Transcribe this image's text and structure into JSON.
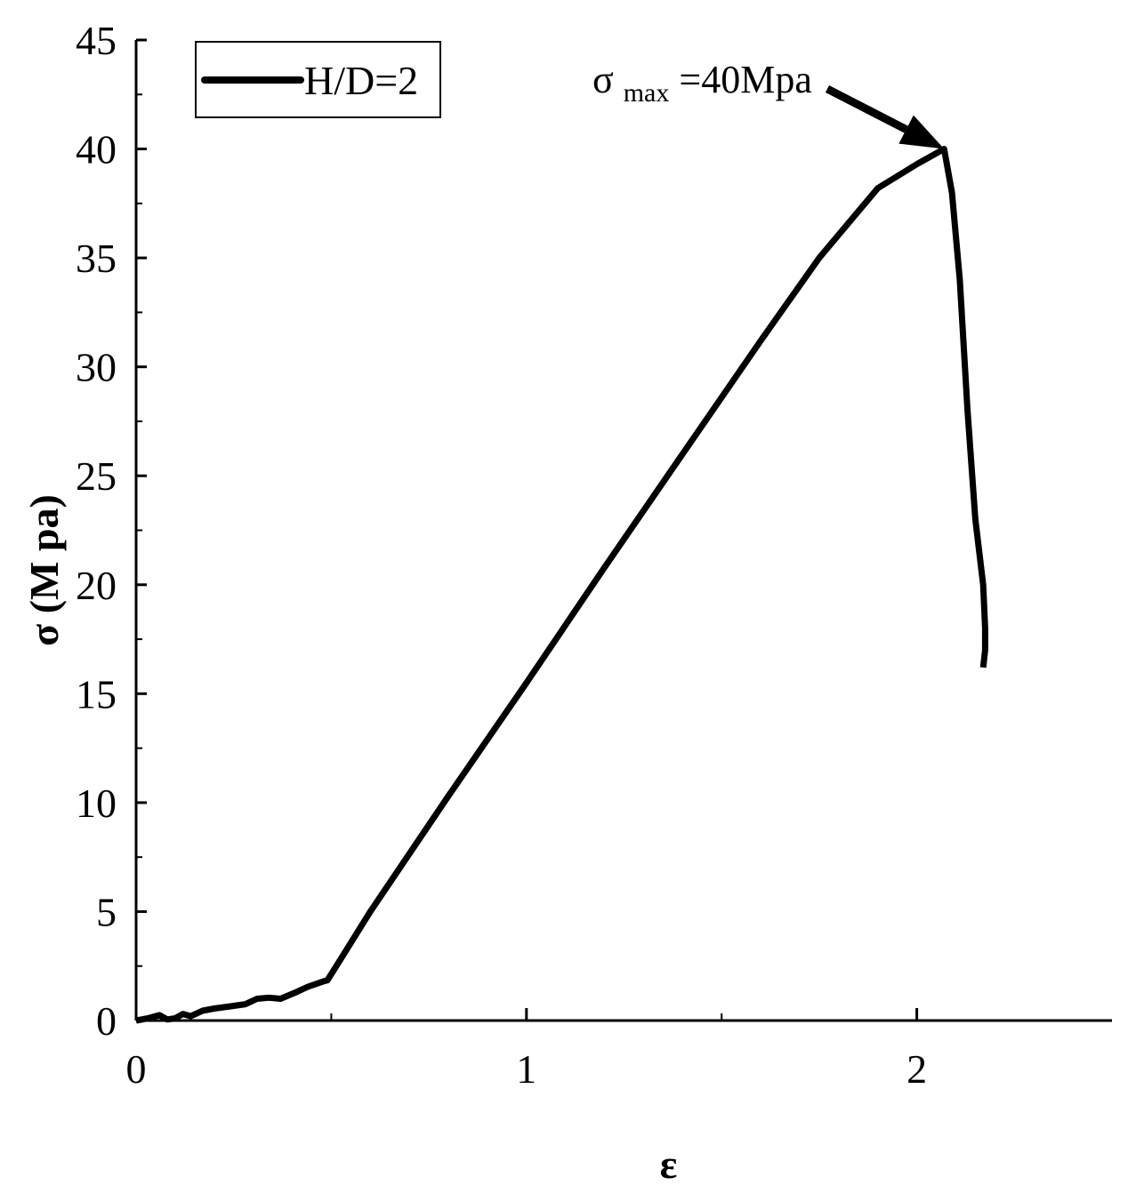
{
  "chart_data": {
    "type": "line",
    "title": "",
    "xlabel": "ε",
    "ylabel": "σ (M pa)",
    "xlim": [
      0,
      2.5
    ],
    "ylim": [
      0,
      45
    ],
    "x_ticks": [
      0,
      1,
      2
    ],
    "x_minor_ticks": [
      0.5,
      1.5
    ],
    "y_ticks": [
      0,
      5,
      10,
      15,
      20,
      25,
      30,
      35,
      40,
      45
    ],
    "grid": false,
    "legend_position": "top-left",
    "colors": {
      "line": "#000000",
      "axis": "#000000",
      "background": "#ffffff"
    },
    "series": [
      {
        "name": "H/D=2",
        "x": [
          0,
          0.03,
          0.06,
          0.08,
          0.1,
          0.12,
          0.14,
          0.17,
          0.2,
          0.24,
          0.28,
          0.31,
          0.34,
          0.37,
          0.41,
          0.44,
          0.48,
          0.49,
          0.52,
          0.6,
          0.8,
          1.0,
          1.2,
          1.4,
          1.6,
          1.75,
          1.9,
          2.0,
          2.07,
          2.09,
          2.11,
          2.13,
          2.15,
          2.17,
          2.175,
          2.175,
          2.17
        ],
        "y": [
          0,
          0.1,
          0.25,
          0.05,
          0.1,
          0.3,
          0.2,
          0.45,
          0.55,
          0.65,
          0.75,
          1.0,
          1.05,
          1.0,
          1.3,
          1.55,
          1.8,
          1.85,
          2.7,
          5.0,
          10.3,
          15.5,
          20.8,
          26.0,
          31.2,
          35.0,
          38.2,
          39.3,
          40.0,
          38.0,
          34.0,
          28.0,
          23.0,
          20.0,
          18.0,
          17.0,
          16.2
        ]
      }
    ],
    "legend_entries": [
      "H/D=2"
    ],
    "annotations": [
      {
        "text_main": "σ",
        "text_sub": "max",
        "text_tail": "=40Mpa",
        "x": 2.07,
        "y": 40,
        "arrow": true
      }
    ]
  }
}
